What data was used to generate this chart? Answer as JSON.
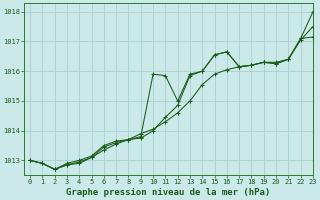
{
  "title": "Graphe pression niveau de la mer (hPa)",
  "background_color": "#cce9e9",
  "grid_color": "#aacfcf",
  "line_color": "#1a5c1a",
  "xlim": [
    -0.5,
    23
  ],
  "ylim": [
    1012.5,
    1018.3
  ],
  "yticks": [
    1013,
    1014,
    1015,
    1016,
    1017,
    1018
  ],
  "xticks": [
    0,
    1,
    2,
    3,
    4,
    5,
    6,
    7,
    8,
    9,
    10,
    11,
    12,
    13,
    14,
    15,
    16,
    17,
    18,
    19,
    20,
    21,
    22,
    23
  ],
  "series": [
    {
      "x": [
        0,
        1,
        2,
        3,
        4,
        5,
        6,
        7,
        8,
        9,
        10,
        11,
        12,
        13,
        14,
        15,
        16,
        17,
        18,
        19,
        20,
        21,
        22,
        23
      ],
      "y": [
        1013.0,
        1012.9,
        1012.7,
        1012.9,
        1013.0,
        1013.15,
        1013.5,
        1013.65,
        1013.7,
        1013.8,
        1015.9,
        1015.85,
        1015.0,
        1015.9,
        1016.0,
        1016.55,
        1016.65,
        1016.15,
        1016.2,
        1016.3,
        1016.25,
        1016.4,
        1017.1,
        1018.0
      ]
    },
    {
      "x": [
        0,
        1,
        2,
        3,
        4,
        5,
        6,
        7,
        8,
        9,
        10,
        11,
        12,
        13,
        14,
        15,
        16,
        17,
        18,
        19,
        20,
        21,
        22,
        23
      ],
      "y": [
        1013.0,
        1012.9,
        1012.7,
        1012.85,
        1012.9,
        1013.1,
        1013.45,
        1013.6,
        1013.7,
        1013.75,
        1014.0,
        1014.45,
        1014.85,
        1015.85,
        1016.0,
        1016.55,
        1016.65,
        1016.15,
        1016.2,
        1016.3,
        1016.25,
        1016.4,
        1017.1,
        1017.15
      ]
    },
    {
      "x": [
        0,
        1,
        2,
        3,
        4,
        5,
        6,
        7,
        8,
        9,
        10,
        11,
        12,
        13,
        14,
        15,
        16,
        17,
        18,
        19,
        20,
        21,
        22,
        23
      ],
      "y": [
        1013.0,
        1012.9,
        1012.7,
        1012.85,
        1012.95,
        1013.1,
        1013.35,
        1013.55,
        1013.7,
        1013.9,
        1014.05,
        1014.3,
        1014.6,
        1015.0,
        1015.55,
        1015.9,
        1016.05,
        1016.15,
        1016.2,
        1016.3,
        1016.3,
        1016.4,
        1017.05,
        1017.5
      ]
    }
  ],
  "title_color": "#1a5c1a",
  "tick_label_color": "#1a5c1a",
  "tick_label_fontsize": 5.0,
  "title_fontsize": 6.5,
  "title_bold": true,
  "spine_color": "#2d7a2d",
  "marker_size": 2.5,
  "linewidth": 0.75
}
